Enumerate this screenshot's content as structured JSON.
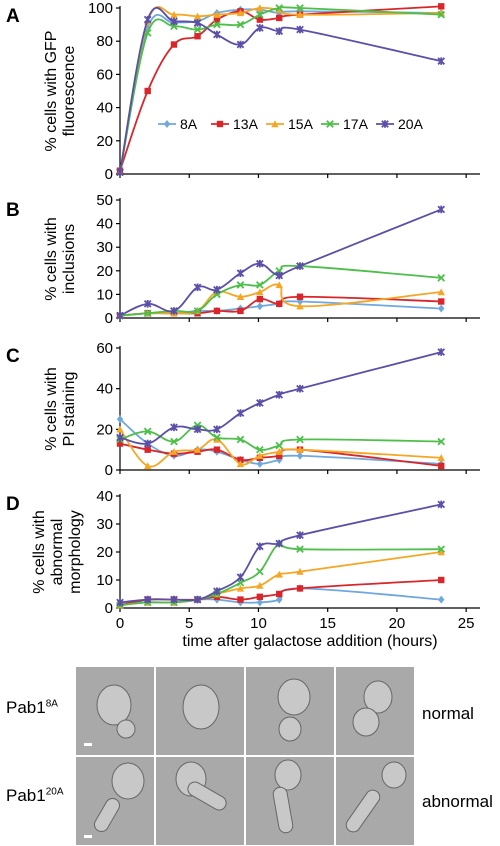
{
  "chart_data": {
    "type": "line",
    "shared_x": {
      "label": "time after galactose addition (hours)",
      "ticks": [
        0,
        5,
        10,
        15,
        20,
        25
      ],
      "xlim": [
        0,
        26
      ]
    },
    "legend": {
      "placement": "inside-bottom-right of panel A",
      "entries": [
        "8A",
        "13A",
        "15A",
        "17A",
        "20A"
      ]
    },
    "series_styles": [
      {
        "key": "8A",
        "color": "#6fa8dc",
        "marker": "diamond"
      },
      {
        "key": "13A",
        "color": "#d9262b",
        "marker": "square"
      },
      {
        "key": "15A",
        "color": "#f5a623",
        "marker": "triangle"
      },
      {
        "key": "17A",
        "color": "#4dbf4a",
        "marker": "x"
      },
      {
        "key": "20A",
        "color": "#5b4fa8",
        "marker": "star"
      }
    ],
    "x": [
      0,
      2,
      3.9,
      5.6,
      7,
      8.7,
      10.1,
      11.5,
      13,
      23.2
    ],
    "panels": [
      {
        "letter": "A",
        "ylabel_lines": [
          "% cells with GFP",
          "fluorescence"
        ],
        "ylim": [
          0,
          100
        ],
        "yticks": [
          0,
          20,
          40,
          60,
          80,
          100
        ],
        "series": [
          {
            "name": "8A",
            "values": [
              1,
              88,
              91,
              92,
              97,
              99,
              99,
              97,
              98,
              97
            ]
          },
          {
            "name": "13A",
            "values": [
              2,
              50,
              78,
              83,
              93,
              98,
              93,
              94,
              96,
              101
            ]
          },
          {
            "name": "15A",
            "values": [
              1,
              92,
              96,
              95,
              96,
              97,
              100,
              99,
              96,
              97
            ]
          },
          {
            "name": "17A",
            "values": [
              1,
              85,
              89,
              87,
              90,
              90,
              96,
              100,
              100,
              96
            ]
          },
          {
            "name": "20A",
            "values": [
              1,
              93,
              92,
              91,
              84,
              78,
              88,
              86,
              87,
              68
            ]
          }
        ]
      },
      {
        "letter": "B",
        "ylabel_lines": [
          "% cells with",
          "inclusions"
        ],
        "ylim": [
          0,
          50
        ],
        "yticks": [
          0,
          10,
          20,
          30,
          40,
          50
        ],
        "series": [
          {
            "name": "8A",
            "values": [
              1,
              2,
              2,
              3,
              3,
              4,
              5,
              6,
              7,
              4
            ]
          },
          {
            "name": "13A",
            "values": [
              1,
              2,
              2,
              2,
              3,
              3,
              8,
              6,
              9,
              7
            ]
          },
          {
            "name": "15A",
            "values": [
              1,
              2,
              2,
              3,
              11,
              9,
              11,
              14,
              5,
              11
            ]
          },
          {
            "name": "17A",
            "values": [
              1,
              2,
              3,
              3,
              10,
              14,
              14,
              20,
              22,
              17
            ]
          },
          {
            "name": "20A",
            "values": [
              1,
              6,
              3,
              13,
              12,
              19,
              23,
              18,
              22,
              46
            ]
          }
        ]
      },
      {
        "letter": "C",
        "ylabel_lines": [
          "% cells with",
          "PI staining"
        ],
        "ylim": [
          0,
          60
        ],
        "yticks": [
          0,
          20,
          40,
          60
        ],
        "series": [
          {
            "name": "8A",
            "values": [
              25,
              13,
              7,
              10,
              9,
              5,
              3,
              5,
              7,
              3
            ]
          },
          {
            "name": "13A",
            "values": [
              13,
              10,
              8,
              9,
              10,
              5,
              6,
              7,
              10,
              2
            ]
          },
          {
            "name": "15A",
            "values": [
              20,
              2,
              9,
              10,
              15,
              3,
              7,
              9,
              10,
              6
            ]
          },
          {
            "name": "17A",
            "values": [
              15,
              19,
              14,
              22,
              16,
              15,
              10,
              12,
              15,
              14
            ]
          },
          {
            "name": "20A",
            "values": [
              16,
              13,
              21,
              20,
              20,
              28,
              33,
              37,
              40,
              58
            ]
          }
        ]
      },
      {
        "letter": "D",
        "ylabel_lines": [
          "% cells with",
          "abnormal",
          "morphology"
        ],
        "ylim": [
          0,
          40
        ],
        "yticks": [
          0,
          10,
          20,
          30,
          40
        ],
        "series": [
          {
            "name": "8A",
            "values": [
              2,
              2,
              2,
              3,
              3,
              2,
              2,
              3,
              7,
              3
            ]
          },
          {
            "name": "13A",
            "values": [
              1,
              3,
              3,
              3,
              4,
              3,
              4,
              5,
              7,
              10
            ]
          },
          {
            "name": "15A",
            "values": [
              1,
              2,
              2,
              3,
              5,
              7,
              8,
              12,
              13,
              20
            ]
          },
          {
            "name": "17A",
            "values": [
              1,
              2,
              2,
              3,
              5,
              9,
              13,
              23,
              21,
              21
            ]
          },
          {
            "name": "20A",
            "values": [
              2,
              3,
              3,
              3,
              6,
              11,
              22,
              23,
              26,
              37
            ]
          }
        ]
      }
    ]
  },
  "micrographs": {
    "rows": [
      {
        "strain": "Pab1",
        "superscript": "8A",
        "morphology": "normal"
      },
      {
        "strain": "Pab1",
        "superscript": "20A",
        "morphology": "abnormal"
      }
    ]
  }
}
